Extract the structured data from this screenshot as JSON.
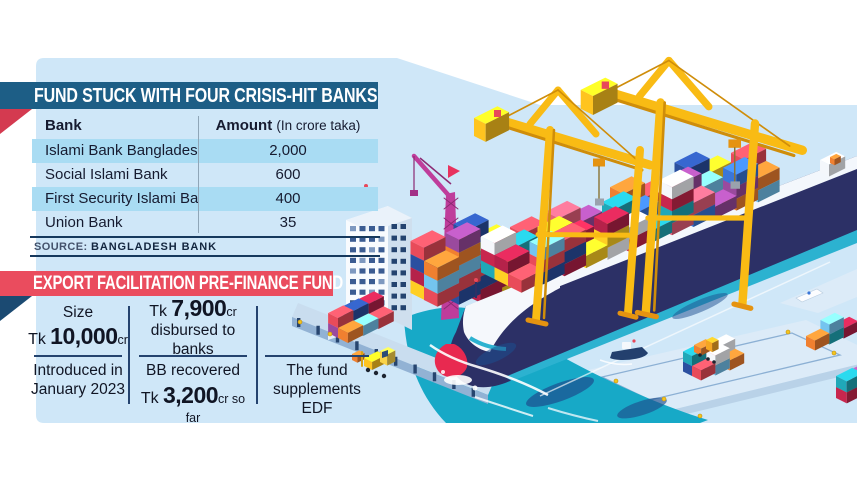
{
  "bank_table": {
    "title": "FUND STUCK WITH FOUR CRISIS-HIT BANKS",
    "columns": {
      "bank": "Bank",
      "amount": "Amount",
      "amount_note": "(In crore taka)"
    },
    "rows": [
      {
        "bank": "Islami Bank Bangladesh",
        "amount": "2,000"
      },
      {
        "bank": "Social Islami Bank",
        "amount": "600"
      },
      {
        "bank": "First Security Islami Bank",
        "amount": "400"
      },
      {
        "bank": "Union Bank",
        "amount": "35"
      }
    ],
    "source_label": "SOURCE:",
    "source_value": "BANGLADESH BANK"
  },
  "fund": {
    "title": "EXPORT FACILITATION PRE-FINANCE FUND",
    "size": {
      "label": "Size",
      "tk": "Tk",
      "value": "10,000",
      "unit": "cr"
    },
    "introduced": {
      "line1": "Introduced in",
      "line2": "January 2023"
    },
    "disbursed": {
      "tk": "Tk",
      "value": "7,900",
      "unit": "cr",
      "caption": "disbursed to banks"
    },
    "recovered": {
      "line1": "BB recovered",
      "tk": "Tk",
      "value": "3,200",
      "suffix": "cr so far"
    },
    "note": {
      "line1": "The fund",
      "line2": "supplements EDF"
    }
  },
  "chart_data": {
    "type": "table",
    "title": "FUND STUCK WITH FOUR CRISIS-HIT BANKS",
    "unit": "crore taka",
    "categories": [
      "Islami Bank Bangladesh",
      "Social Islami Bank",
      "First Security Islami Bank",
      "Union Bank"
    ],
    "values": [
      2000,
      600,
      400,
      35
    ],
    "source": "BANGLADESH BANK",
    "fund_facts": {
      "fund_name": "EXPORT FACILITATION PRE-FINANCE FUND",
      "size_crore": 10000,
      "introduced": "January 2023",
      "disbursed_crore": 7900,
      "recovered_crore": 3200,
      "note": "The fund supplements EDF"
    }
  },
  "colors": {
    "panel": "#cfe7f8",
    "row_stripe": "#a9dcf3",
    "title_ribbon": "#1d5e86",
    "fund_ribbon": "#ea4c5e",
    "crane_yellow": "#f9bb14",
    "water_teal": "#17a9c7",
    "hull_navy": "#2c3066",
    "text_dark": "#161b30"
  },
  "illustration": {
    "icon": "container-ship-port-illustration"
  }
}
